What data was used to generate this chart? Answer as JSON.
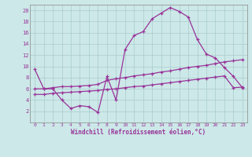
{
  "title": "",
  "xlabel": "Windchill (Refroidissement éolien,°C)",
  "x_ticks": [
    0,
    1,
    2,
    3,
    4,
    5,
    6,
    7,
    8,
    9,
    10,
    11,
    12,
    13,
    14,
    15,
    16,
    17,
    18,
    19,
    20,
    21,
    22,
    23
  ],
  "xlim": [
    -0.5,
    23.5
  ],
  "ylim": [
    0,
    21
  ],
  "y_ticks": [
    2,
    4,
    6,
    8,
    10,
    12,
    14,
    16,
    18,
    20
  ],
  "background_color": "#cce8e8",
  "grid_color": "#aacccc",
  "line_color": "#993399",
  "series1_x": [
    0,
    1,
    2,
    3,
    4,
    5,
    6,
    7,
    8,
    9,
    10,
    11,
    12,
    13,
    14,
    15,
    16,
    17,
    18,
    19,
    20,
    21,
    22,
    23
  ],
  "series1_y": [
    9.5,
    6.0,
    6.0,
    4.0,
    2.5,
    3.0,
    2.8,
    1.8,
    8.2,
    4.0,
    13.0,
    15.5,
    16.2,
    18.5,
    19.5,
    20.5,
    19.8,
    18.8,
    14.8,
    12.2,
    11.5,
    9.8,
    8.2,
    6.2
  ],
  "series2_x": [
    0,
    1,
    2,
    3,
    4,
    5,
    6,
    7,
    8,
    9,
    10,
    11,
    12,
    13,
    14,
    15,
    16,
    17,
    18,
    19,
    20,
    21,
    22,
    23
  ],
  "series2_y": [
    6.0,
    6.0,
    6.2,
    6.4,
    6.4,
    6.5,
    6.6,
    6.8,
    7.5,
    7.8,
    8.0,
    8.3,
    8.5,
    8.7,
    9.0,
    9.2,
    9.5,
    9.8,
    10.0,
    10.2,
    10.5,
    10.8,
    11.0,
    11.2
  ],
  "series3_x": [
    0,
    1,
    2,
    3,
    4,
    5,
    6,
    7,
    8,
    9,
    10,
    11,
    12,
    13,
    14,
    15,
    16,
    17,
    18,
    19,
    20,
    21,
    22,
    23
  ],
  "series3_y": [
    5.0,
    5.0,
    5.2,
    5.3,
    5.4,
    5.5,
    5.6,
    5.7,
    5.9,
    6.0,
    6.2,
    6.4,
    6.5,
    6.7,
    6.9,
    7.1,
    7.3,
    7.5,
    7.7,
    7.9,
    8.1,
    8.3,
    6.2,
    6.3
  ]
}
